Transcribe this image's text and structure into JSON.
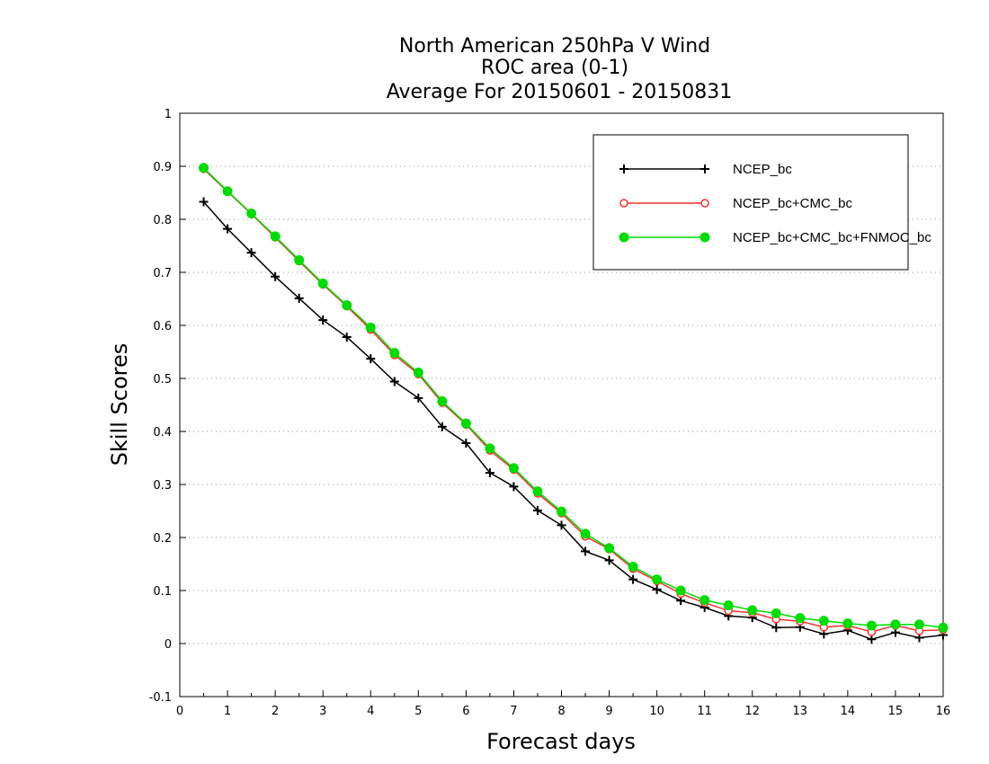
{
  "chart_data": {
    "type": "line",
    "title": [
      "North American 250hPa V Wind",
      "ROC area (0-1)",
      "Average For 20150601 - 20150831"
    ],
    "xlabel": "Forecast days",
    "ylabel": "Skill Scores",
    "xlim": [
      0,
      16
    ],
    "ylim": [
      -0.1,
      1
    ],
    "xticks": [
      "0",
      "1",
      "2",
      "3",
      "4",
      "5",
      "6",
      "7",
      "8",
      "9",
      "10",
      "11",
      "12",
      "13",
      "14",
      "15",
      "16"
    ],
    "yticks": [
      "-0.1",
      "0",
      "0.1",
      "0.2",
      "0.3",
      "0.4",
      "0.5",
      "0.6",
      "0.7",
      "0.8",
      "0.9",
      "1"
    ],
    "grid": "horizontal dotted",
    "legend_position": "top-right",
    "x": [
      0.5,
      1,
      1.5,
      2,
      2.5,
      3,
      3.5,
      4,
      4.5,
      5,
      5.5,
      6,
      6.5,
      7,
      7.5,
      8,
      8.5,
      9,
      9.5,
      10,
      10.5,
      11,
      11.5,
      12,
      12.5,
      13,
      13.5,
      14,
      14.5,
      15,
      15.5,
      16
    ],
    "series": [
      {
        "name": "NCEP_bc",
        "color": "#000000",
        "marker": "plus",
        "values": [
          0.833,
          0.782,
          0.737,
          0.692,
          0.651,
          0.61,
          0.578,
          0.537,
          0.494,
          0.463,
          0.409,
          0.378,
          0.322,
          0.296,
          0.251,
          0.223,
          0.174,
          0.157,
          0.121,
          0.102,
          0.081,
          0.068,
          0.052,
          0.049,
          0.03,
          0.031,
          0.018,
          0.025,
          0.008,
          0.021,
          0.011,
          0.016
        ]
      },
      {
        "name": "NCEP_bc+CMC_bc",
        "color": "#ff3030",
        "marker": "open-circle",
        "values": [
          0.895,
          0.852,
          0.81,
          0.766,
          0.721,
          0.677,
          0.636,
          0.592,
          0.544,
          0.508,
          0.454,
          0.413,
          0.364,
          0.328,
          0.283,
          0.246,
          0.202,
          0.178,
          0.141,
          0.118,
          0.094,
          0.077,
          0.062,
          0.058,
          0.046,
          0.042,
          0.031,
          0.034,
          0.022,
          0.034,
          0.024,
          0.026
        ]
      },
      {
        "name": "NCEP_bc+CMC_bc+FNMOC_bc",
        "color": "#00dc00",
        "marker": "filled-circle",
        "values": [
          0.897,
          0.853,
          0.811,
          0.768,
          0.723,
          0.679,
          0.638,
          0.596,
          0.548,
          0.511,
          0.457,
          0.415,
          0.368,
          0.331,
          0.287,
          0.249,
          0.207,
          0.18,
          0.145,
          0.121,
          0.1,
          0.082,
          0.072,
          0.063,
          0.057,
          0.048,
          0.043,
          0.038,
          0.034,
          0.036,
          0.036,
          0.03
        ]
      }
    ]
  }
}
